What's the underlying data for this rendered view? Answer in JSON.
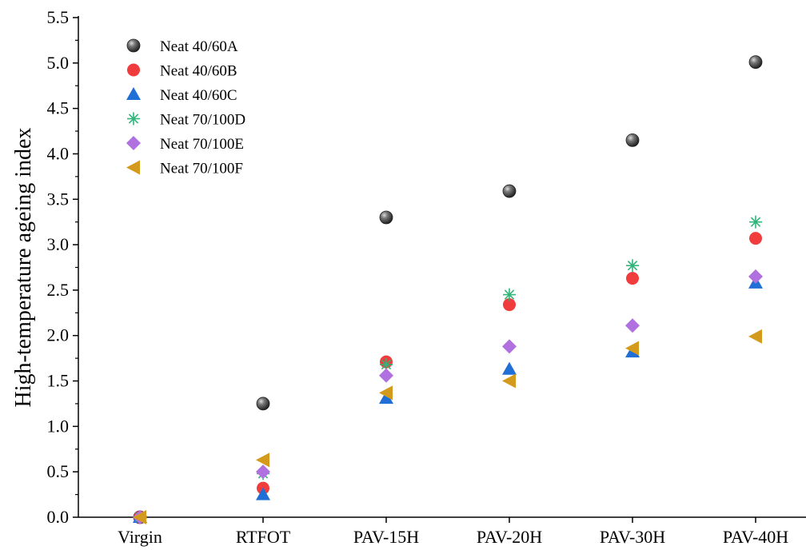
{
  "chart_data": {
    "type": "scatter",
    "title": "",
    "xlabel": "",
    "ylabel": "High-temperature ageing index",
    "categories": [
      "Virgin",
      "RTFOT",
      "PAV-15H",
      "PAV-20H",
      "PAV-30H",
      "PAV-40H"
    ],
    "ylim": [
      0,
      5.5
    ],
    "yticks": [
      "0.0",
      "0.5",
      "1.0",
      "1.5",
      "2.0",
      "2.5",
      "3.0",
      "3.5",
      "4.0",
      "4.5",
      "5.0",
      "5.5"
    ],
    "grid": false,
    "legend_position": "top-left",
    "series": [
      {
        "name": "Neat 40/60A",
        "marker": "sphere",
        "color": "#4a4a4a",
        "values": [
          0.0,
          1.25,
          3.3,
          3.59,
          4.15,
          5.01
        ]
      },
      {
        "name": "Neat 40/60B",
        "marker": "circle",
        "color": "#f03c3c",
        "values": [
          0.0,
          0.32,
          1.71,
          2.34,
          2.63,
          3.07
        ]
      },
      {
        "name": "Neat 40/60C",
        "marker": "triangle-up",
        "color": "#1f6fd6",
        "values": [
          0.0,
          0.25,
          1.31,
          1.63,
          1.82,
          2.58
        ]
      },
      {
        "name": "Neat 70/100D",
        "marker": "asterisk",
        "color": "#2fb57a",
        "values": [
          0.0,
          0.48,
          1.68,
          2.45,
          2.77,
          3.25
        ]
      },
      {
        "name": "Neat 70/100E",
        "marker": "diamond",
        "color": "#b070e0",
        "values": [
          0.0,
          0.5,
          1.56,
          1.88,
          2.11,
          2.65
        ]
      },
      {
        "name": "Neat 70/100F",
        "marker": "triangle-left",
        "color": "#d49a1c",
        "values": [
          0.0,
          0.63,
          1.37,
          1.5,
          1.86,
          1.99
        ]
      }
    ]
  }
}
